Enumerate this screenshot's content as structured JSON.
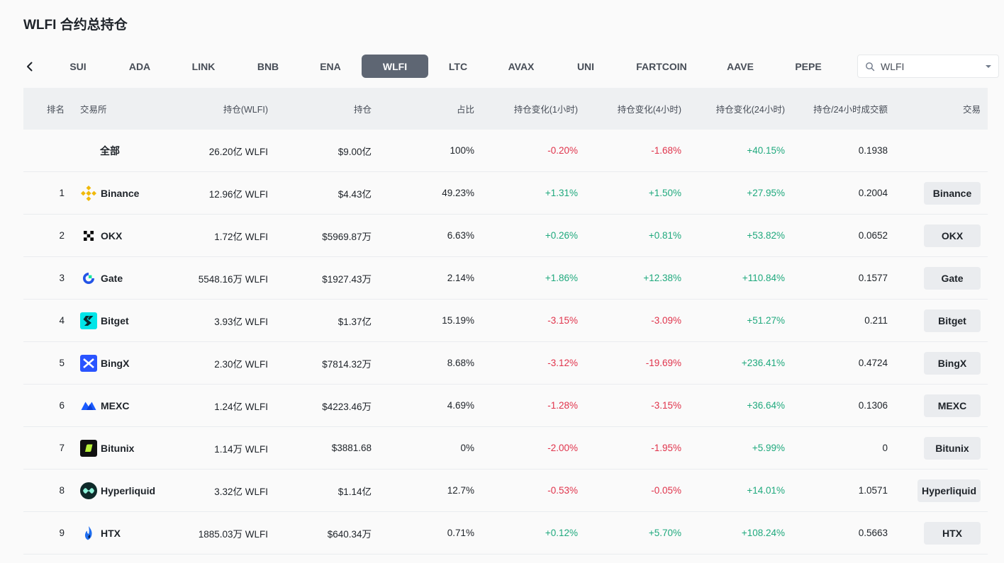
{
  "page": {
    "title": "WLFI 合约总持仓"
  },
  "tabs": [
    {
      "label": "SUI"
    },
    {
      "label": "ADA"
    },
    {
      "label": "LINK"
    },
    {
      "label": "BNB"
    },
    {
      "label": "ENA"
    },
    {
      "label": "WLFI",
      "active": true
    },
    {
      "label": "LTC"
    },
    {
      "label": "AVAX"
    },
    {
      "label": "UNI"
    },
    {
      "label": "FARTCOIN"
    },
    {
      "label": "AAVE"
    },
    {
      "label": "PEPE"
    }
  ],
  "search": {
    "value": "WLFI"
  },
  "table": {
    "headers": {
      "rank": "排名",
      "exchange": "交易所",
      "oi_qty": "持仓(WLFI)",
      "oi_value": "持仓",
      "share": "占比",
      "change_1h": "持仓变化(1小时)",
      "change_4h": "持仓变化(4小时)",
      "change_24h": "持仓变化(24小时)",
      "oi_vol_ratio": "持仓/24小时成交额",
      "trade": "交易"
    },
    "total": {
      "label": "全部",
      "oi_qty": "26.20亿 WLFI",
      "oi_value": "$9.00亿",
      "share": "100%",
      "change_1h": "-0.20%",
      "change_4h": "-1.68%",
      "change_24h": "+40.15%",
      "oi_vol_ratio": "0.1938"
    },
    "rows": [
      {
        "rank": "1",
        "exchange": "Binance",
        "logo": "binance-logo-icon",
        "oi_qty": "12.96亿 WLFI",
        "oi_value": "$4.43亿",
        "share": "49.23%",
        "change_1h": "+1.31%",
        "change_4h": "+1.50%",
        "change_24h": "+27.95%",
        "oi_vol_ratio": "0.2004",
        "trade": "Binance"
      },
      {
        "rank": "2",
        "exchange": "OKX",
        "logo": "okx-logo-icon",
        "oi_qty": "1.72亿 WLFI",
        "oi_value": "$5969.87万",
        "share": "6.63%",
        "change_1h": "+0.26%",
        "change_4h": "+0.81%",
        "change_24h": "+53.82%",
        "oi_vol_ratio": "0.0652",
        "trade": "OKX"
      },
      {
        "rank": "3",
        "exchange": "Gate",
        "logo": "gate-logo-icon",
        "oi_qty": "5548.16万 WLFI",
        "oi_value": "$1927.43万",
        "share": "2.14%",
        "change_1h": "+1.86%",
        "change_4h": "+12.38%",
        "change_24h": "+110.84%",
        "oi_vol_ratio": "0.1577",
        "trade": "Gate"
      },
      {
        "rank": "4",
        "exchange": "Bitget",
        "logo": "bitget-logo-icon",
        "oi_qty": "3.93亿 WLFI",
        "oi_value": "$1.37亿",
        "share": "15.19%",
        "change_1h": "-3.15%",
        "change_4h": "-3.09%",
        "change_24h": "+51.27%",
        "oi_vol_ratio": "0.211",
        "trade": "Bitget"
      },
      {
        "rank": "5",
        "exchange": "BingX",
        "logo": "bingx-logo-icon",
        "oi_qty": "2.30亿 WLFI",
        "oi_value": "$7814.32万",
        "share": "8.68%",
        "change_1h": "-3.12%",
        "change_4h": "-19.69%",
        "change_24h": "+236.41%",
        "oi_vol_ratio": "0.4724",
        "trade": "BingX"
      },
      {
        "rank": "6",
        "exchange": "MEXC",
        "logo": "mexc-logo-icon",
        "oi_qty": "1.24亿 WLFI",
        "oi_value": "$4223.46万",
        "share": "4.69%",
        "change_1h": "-1.28%",
        "change_4h": "-3.15%",
        "change_24h": "+36.64%",
        "oi_vol_ratio": "0.1306",
        "trade": "MEXC"
      },
      {
        "rank": "7",
        "exchange": "Bitunix",
        "logo": "bitunix-logo-icon",
        "oi_qty": "1.14万 WLFI",
        "oi_value": "$3881.68",
        "share": "0%",
        "change_1h": "-2.00%",
        "change_4h": "-1.95%",
        "change_24h": "+5.99%",
        "oi_vol_ratio": "0",
        "trade": "Bitunix"
      },
      {
        "rank": "8",
        "exchange": "Hyperliquid",
        "logo": "hyperliquid-logo-icon",
        "oi_qty": "3.32亿 WLFI",
        "oi_value": "$1.14亿",
        "share": "12.7%",
        "change_1h": "-0.53%",
        "change_4h": "-0.05%",
        "change_24h": "+14.01%",
        "oi_vol_ratio": "1.0571",
        "trade": "Hyperliquid"
      },
      {
        "rank": "9",
        "exchange": "HTX",
        "logo": "htx-logo-icon",
        "oi_qty": "1885.03万 WLFI",
        "oi_value": "$640.34万",
        "share": "0.71%",
        "change_1h": "+0.12%",
        "change_4h": "+5.70%",
        "change_24h": "+108.24%",
        "oi_vol_ratio": "0.5663",
        "trade": "HTX"
      }
    ]
  },
  "colors": {
    "negative": "#e0334b",
    "positive": "#1fa97d",
    "active_tab": "#5e6673"
  },
  "icons": {
    "back": "chevron-left-icon",
    "search": "search-icon",
    "dropdown": "caret-down-icon"
  }
}
